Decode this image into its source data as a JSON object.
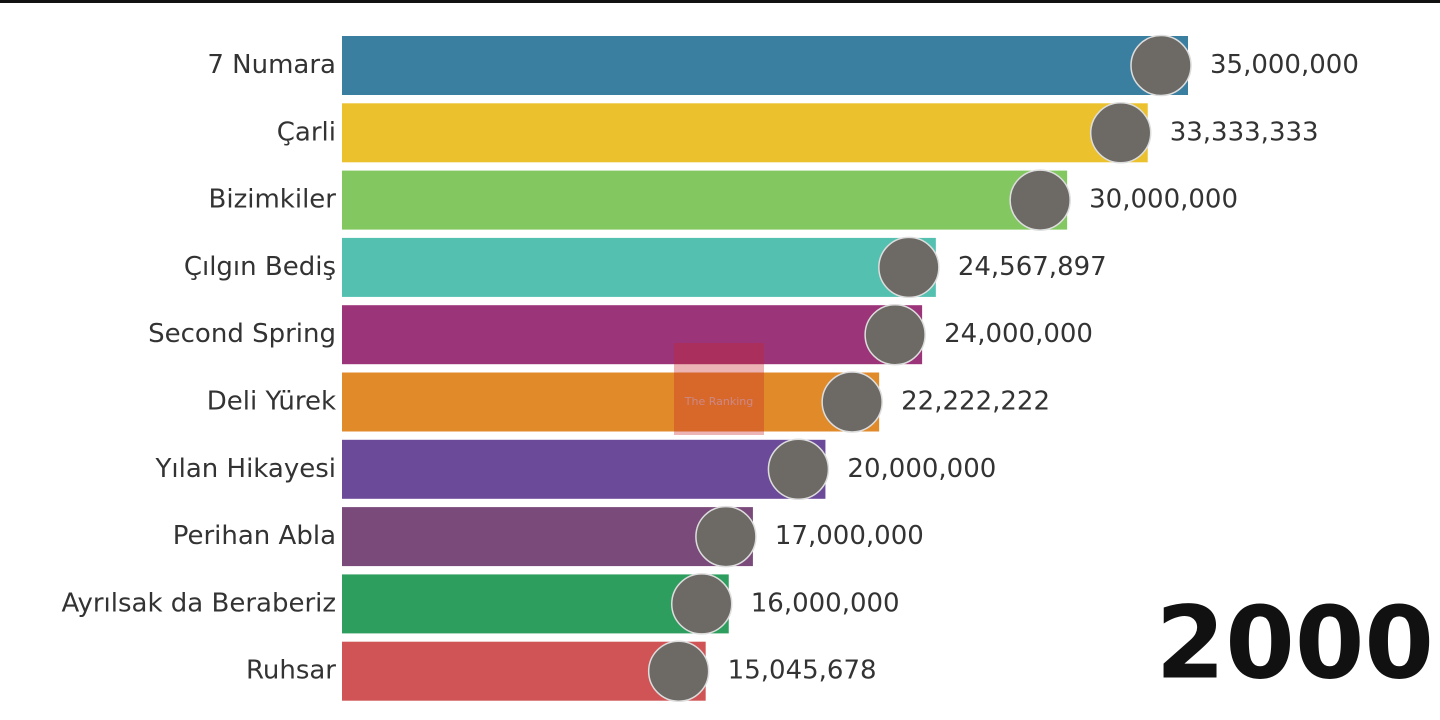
{
  "chart_data": {
    "type": "bar",
    "orientation": "horizontal",
    "categories": [
      "7 Numara",
      "Çarli",
      "Bizimkiler",
      "Çılgın Bediş",
      "Second Spring",
      "Deli Yürek",
      "Yılan Hikayesi",
      "Perihan Abla",
      "Ayrılsak da Beraberiz",
      "Ruhsar"
    ],
    "values": [
      35000000,
      33333333,
      30000000,
      24567897,
      24000000,
      22222222,
      20000000,
      17000000,
      16000000,
      15045678
    ],
    "value_labels": [
      "35,000,000",
      "33,333,333",
      "30,000,000",
      "24,567,897",
      "24,000,000",
      "22,222,222",
      "20,000,000",
      "17,000,000",
      "16,000,000",
      "15,045,678"
    ],
    "colors": [
      "#3a7fa0",
      "#ebc12e",
      "#82c760",
      "#53c0b0",
      "#9b3478",
      "#e08a2a",
      "#6c4a9a",
      "#7a4a7a",
      "#2e9e5e",
      "#d05455"
    ],
    "year": 2000,
    "watermark": "The Ranking"
  }
}
